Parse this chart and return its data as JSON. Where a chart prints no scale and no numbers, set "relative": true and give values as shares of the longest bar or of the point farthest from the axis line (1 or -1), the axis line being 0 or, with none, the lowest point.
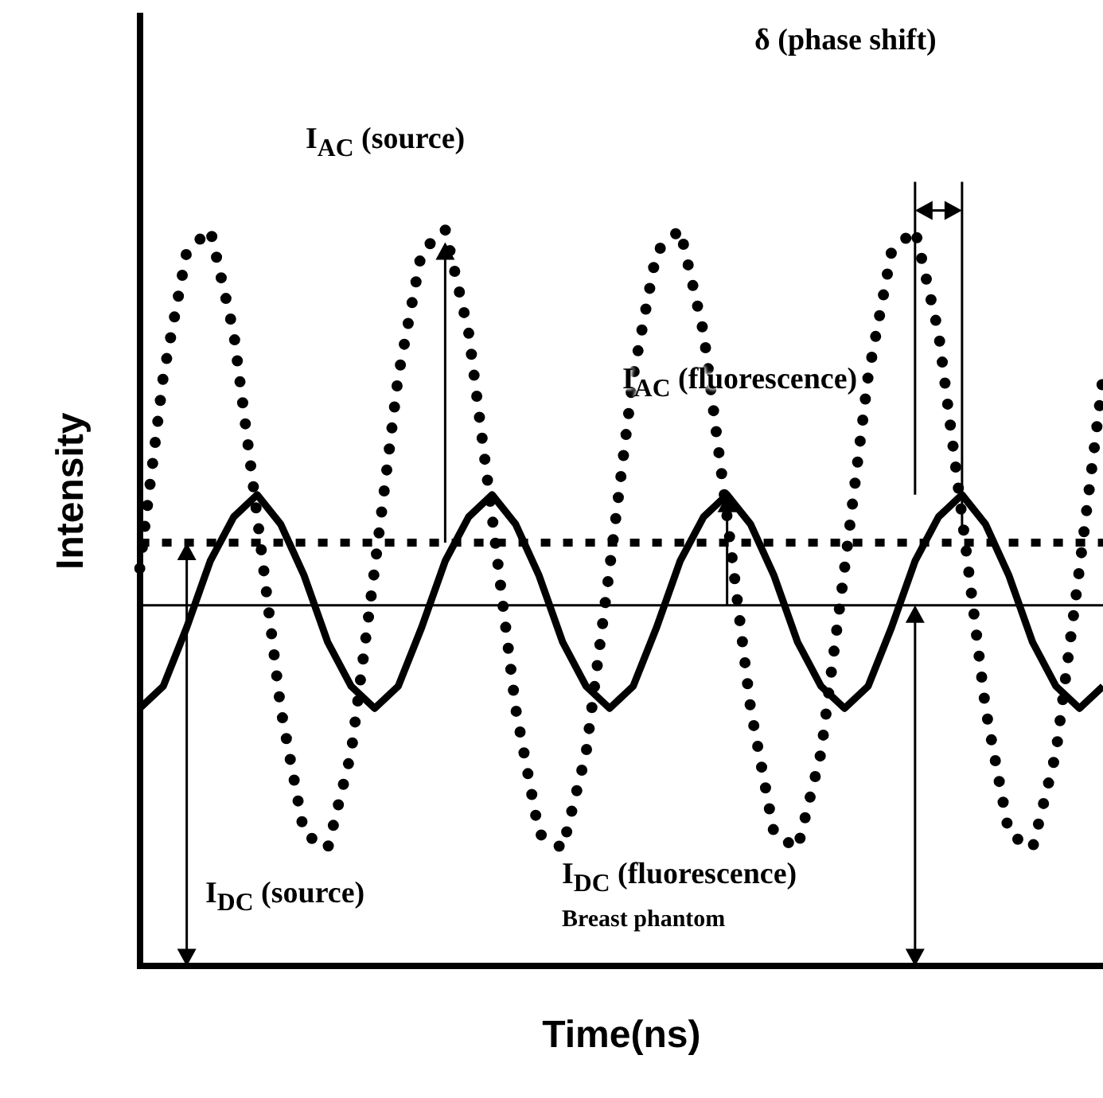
{
  "chart_data": {
    "type": "line",
    "relative": true,
    "xlabel": "Time(ns)",
    "ylabel": "Intensity",
    "categories": [
      null,
      null,
      null,
      null,
      null,
      null,
      null,
      null,
      null,
      null,
      null,
      null,
      null,
      null,
      null,
      null,
      null,
      null,
      null,
      null,
      null,
      null,
      null,
      null,
      null,
      null,
      null,
      null,
      null,
      null,
      null,
      null,
      null,
      null,
      null,
      null,
      null,
      null,
      null,
      null,
      null,
      null
    ],
    "series": [
      {
        "color": "#000000",
        "line_style": "dotted",
        "values": [
          0.54,
          0.8,
          0.97,
          1,
          0.86,
          0.61,
          0.35,
          0.18,
          0.16,
          0.29,
          0.54,
          0.8,
          0.97,
          1,
          0.86,
          0.61,
          0.35,
          0.18,
          0.16,
          0.29,
          0.54,
          0.8,
          0.97,
          1,
          0.86,
          0.61,
          0.35,
          0.18,
          0.16,
          0.29,
          0.54,
          0.8,
          0.97,
          1,
          0.86,
          0.61,
          0.35,
          0.18,
          0.16,
          0.29,
          0.54,
          0.8
        ]
      },
      {
        "color": "#000000",
        "line_style": "solid",
        "values": [
          0.35,
          0.38,
          0.46,
          0.55,
          0.61,
          0.64,
          0.6,
          0.53,
          0.44,
          0.38,
          0.35,
          0.38,
          0.46,
          0.55,
          0.61,
          0.64,
          0.6,
          0.53,
          0.44,
          0.38,
          0.35,
          0.38,
          0.46,
          0.55,
          0.61,
          0.64,
          0.6,
          0.53,
          0.44,
          0.38,
          0.35,
          0.38,
          0.46,
          0.55,
          0.61,
          0.64,
          0.6,
          0.53,
          0.44,
          0.38,
          0.35,
          0.38
        ]
      },
      {
        "color": "#000000",
        "line_style": "dashed",
        "values": [
          0.575,
          0.575,
          0.575,
          0.575,
          0.575,
          0.575,
          0.575,
          0.575,
          0.575,
          0.575,
          0.575,
          0.575,
          0.575,
          0.575,
          0.575,
          0.575,
          0.575,
          0.575,
          0.575,
          0.575,
          0.575,
          0.575,
          0.575,
          0.575,
          0.575,
          0.575,
          0.575,
          0.575,
          0.575,
          0.575,
          0.575,
          0.575,
          0.575,
          0.575,
          0.575,
          0.575,
          0.575,
          0.575,
          0.575,
          0.575,
          0.575,
          0.575
        ]
      },
      {
        "color": "#000000",
        "line_style": "solid",
        "values": [
          0.49,
          0.49,
          0.49,
          0.49,
          0.49,
          0.49,
          0.49,
          0.49,
          0.49,
          0.49,
          0.49,
          0.49,
          0.49,
          0.49,
          0.49,
          0.49,
          0.49,
          0.49,
          0.49,
          0.49,
          0.49,
          0.49,
          0.49,
          0.49,
          0.49,
          0.49,
          0.49,
          0.49,
          0.49,
          0.49,
          0.49,
          0.49,
          0.49,
          0.49,
          0.49,
          0.49,
          0.49,
          0.49,
          0.49,
          0.49,
          0.49,
          0.49
        ]
      }
    ],
    "annotations": [
      "δ (phase shift)",
      "I$_{AC}$ (source)",
      "I$_{AC}$ (fluorescence)",
      "I$_{DC}$ (source)",
      "I$_{DC}$ (fluorescence)",
      "Breast phantom"
    ],
    "grid": false,
    "legend": false,
    "marker": "none"
  }
}
